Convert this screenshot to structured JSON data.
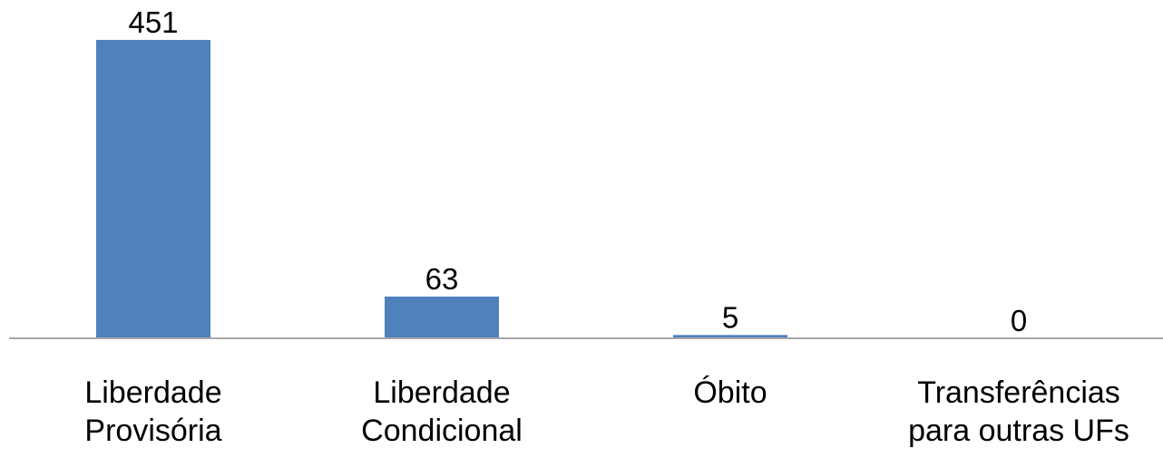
{
  "chart_data": {
    "type": "bar",
    "categories": [
      "Liberdade Provisória",
      "Liberdade Condicional",
      "Óbito",
      "Transferências para outras UFs"
    ],
    "values": [
      451,
      63,
      5,
      0
    ],
    "color": "#4f81bd"
  }
}
